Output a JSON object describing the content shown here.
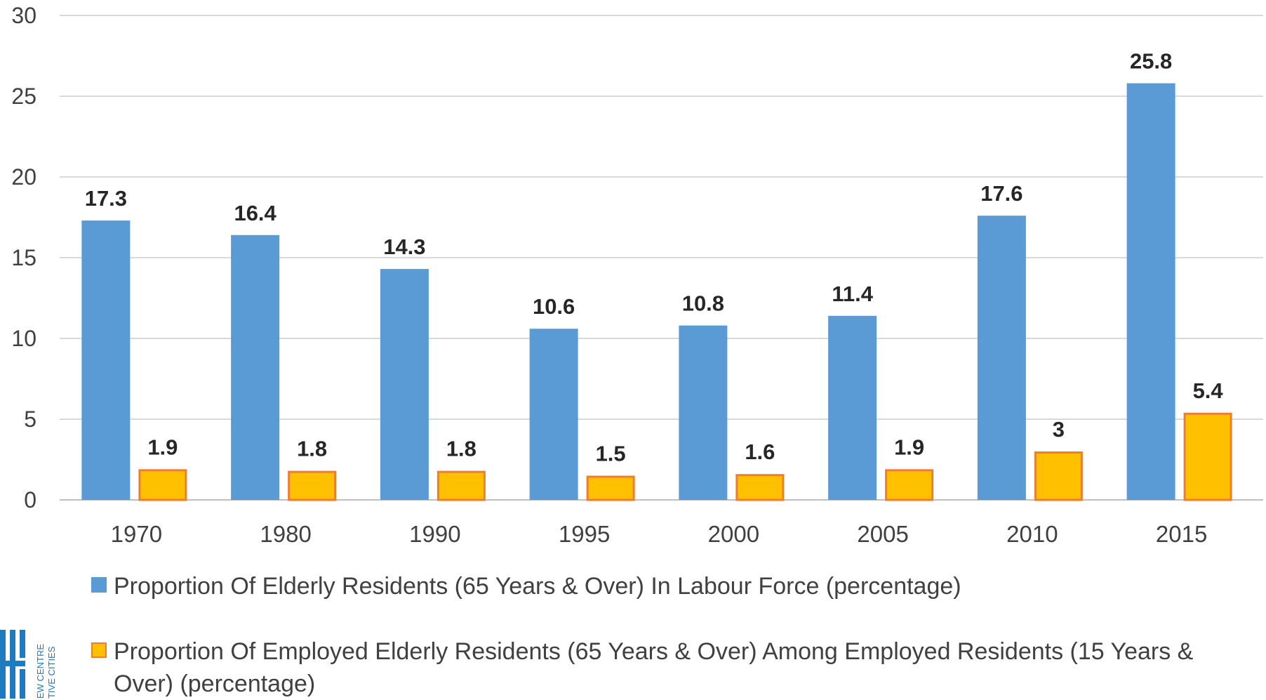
{
  "chart_data": {
    "type": "bar",
    "categories": [
      "1970",
      "1980",
      "1990",
      "1995",
      "2000",
      "2005",
      "2010",
      "2015"
    ],
    "series": [
      {
        "name": "Proportion Of Elderly Residents (65 Years & Over) In Labour Force (percentage)",
        "values": [
          17.3,
          16.4,
          14.3,
          10.6,
          10.8,
          11.4,
          17.6,
          25.8
        ],
        "color": "#5b9bd5"
      },
      {
        "name": "Proportion Of Employed Elderly Residents (65 Years & Over) Among Employed Residents (15 Years & Over) (percentage)",
        "values": [
          1.9,
          1.8,
          1.8,
          1.5,
          1.6,
          1.9,
          3,
          5.4
        ],
        "color": "#ffc000",
        "border_color": "#ed7d31"
      }
    ],
    "ylim": [
      0,
      30
    ],
    "yticks": [
      "0",
      "5",
      "10",
      "15",
      "20",
      "25",
      "30"
    ],
    "grid": true,
    "legend_position": "bottom",
    "data_labels": true
  },
  "logo": {
    "text_lines": [
      "EW CENTRE",
      "TIVE CITIES"
    ],
    "color": "#1f7bbf"
  }
}
